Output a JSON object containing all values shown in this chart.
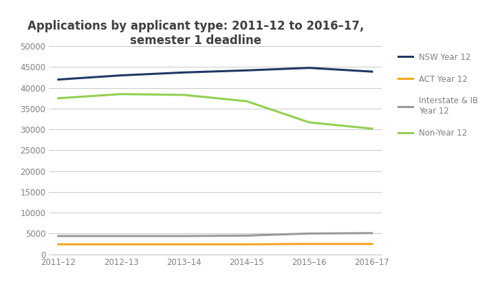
{
  "title": "Applications by applicant type: 2011–12 to 2016–17,\nsemester 1 deadline",
  "x_labels": [
    "2011–12",
    "2012–13",
    "2013–14",
    "2014–15",
    "2015–16",
    "2016–17"
  ],
  "series": [
    {
      "name": "NSW Year 12",
      "color": "#1f3864",
      "linewidth": 2.2,
      "values": [
        42000,
        43000,
        43700,
        44200,
        44800,
        43900
      ]
    },
    {
      "name": "ACT Year 12",
      "color": "#f5a623",
      "linewidth": 2.2,
      "values": [
        2400,
        2400,
        2400,
        2400,
        2500,
        2500
      ]
    },
    {
      "name": "Interstate & IB\nYear 12",
      "color": "#999999",
      "linewidth": 2.2,
      "values": [
        4400,
        4400,
        4400,
        4500,
        5000,
        5100
      ]
    },
    {
      "name": "Non-Year 12",
      "color": "#92d050",
      "linewidth": 2.2,
      "values": [
        37500,
        38500,
        38300,
        36800,
        31700,
        30200
      ]
    }
  ],
  "ylim": [
    0,
    50000
  ],
  "yticks": [
    0,
    5000,
    10000,
    15000,
    20000,
    25000,
    30000,
    35000,
    40000,
    45000,
    50000
  ],
  "background_color": "#ffffff",
  "grid_color": "#c8c8c8",
  "title_fontsize": 12,
  "tick_fontsize": 8.5,
  "legend_fontsize": 8.5,
  "tick_color": "#7f8080",
  "title_color": "#404040"
}
